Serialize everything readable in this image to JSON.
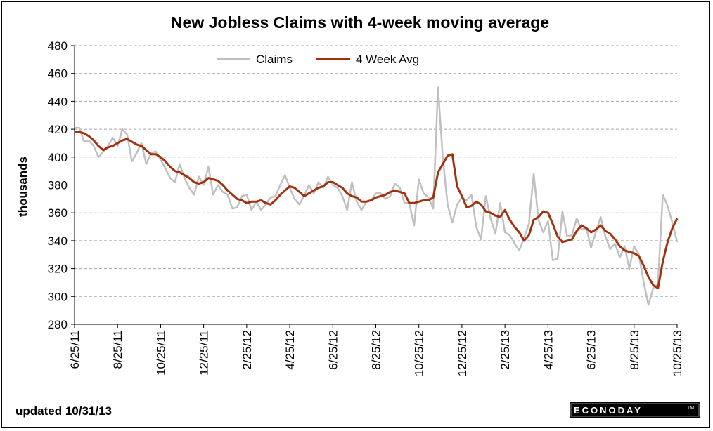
{
  "chart_data": {
    "type": "line",
    "title": "New Jobless Claims with 4-week moving average",
    "ylabel": "thousands",
    "ylim": [
      280,
      480
    ],
    "yticks": [
      280,
      300,
      320,
      340,
      360,
      380,
      400,
      420,
      440,
      460,
      480
    ],
    "xtick_labels": [
      "6/25/11",
      "8/25/11",
      "10/25/11",
      "12/25/11",
      "2/25/12",
      "4/25/12",
      "6/25/12",
      "8/25/12",
      "10/25/12",
      "12/25/12",
      "2/25/13",
      "4/25/13",
      "6/25/13",
      "8/25/13",
      "10/25/13"
    ],
    "grid": "horizontal dashed",
    "legend_position": "top-left",
    "series": [
      {
        "name": "Claims",
        "color": "#c0c0c0",
        "values": [
          421,
          421,
          411,
          412,
          408,
          400,
          404,
          408,
          414,
          408,
          420,
          416,
          397,
          403,
          410,
          395,
          403,
          404,
          398,
          392,
          385,
          382,
          395,
          385,
          378,
          373,
          386,
          380,
          393,
          373,
          380,
          375,
          373,
          363,
          364,
          372,
          373,
          362,
          368,
          362,
          366,
          371,
          372,
          380,
          387,
          378,
          370,
          366,
          372,
          380,
          374,
          382,
          378,
          386,
          380,
          378,
          372,
          362,
          382,
          368,
          362,
          368,
          369,
          374,
          374,
          370,
          372,
          381,
          378,
          367,
          367,
          351,
          384,
          374,
          371,
          363,
          450,
          400,
          366,
          353,
          366,
          371,
          369,
          373,
          350,
          341,
          372,
          356,
          345,
          367,
          346,
          344,
          338,
          333,
          342,
          352,
          388,
          355,
          346,
          354,
          326,
          327,
          361,
          343,
          344,
          356,
          348,
          349,
          335,
          346,
          357,
          343,
          334,
          338,
          328,
          336,
          320,
          336,
          330,
          310,
          294,
          306,
          309,
          373,
          365,
          353,
          339
        ]
      },
      {
        "name": "4 Week Avg",
        "color": "#a0320f",
        "values": [
          418,
          418,
          417,
          415,
          412,
          408,
          405,
          407,
          408,
          410,
          412,
          413,
          411,
          409,
          408,
          405,
          402,
          402,
          400,
          397,
          393,
          390,
          389,
          387,
          385,
          382,
          381,
          382,
          385,
          384,
          383,
          380,
          376,
          373,
          370,
          369,
          367,
          368,
          368,
          369,
          367,
          366,
          369,
          373,
          376,
          379,
          378,
          375,
          372,
          374,
          376,
          378,
          379,
          382,
          382,
          380,
          378,
          374,
          372,
          371,
          368,
          368,
          369,
          371,
          372,
          373,
          375,
          376,
          375,
          374,
          367,
          367,
          368,
          369,
          369,
          371,
          389,
          395,
          401,
          402,
          379,
          372,
          364,
          365,
          368,
          366,
          361,
          360,
          358,
          357,
          362,
          355,
          350,
          346,
          340,
          344,
          355,
          357,
          361,
          360,
          352,
          343,
          339,
          340,
          341,
          347,
          351,
          349,
          346,
          348,
          351,
          347,
          345,
          341,
          336,
          333,
          332,
          331,
          329,
          322,
          314,
          308,
          306,
          325,
          339,
          349,
          356
        ]
      }
    ]
  },
  "footer": {
    "updated": "updated  10/31/13",
    "logo": "ECONODAY",
    "logo_mark": "TM"
  },
  "colors": {
    "claims": "#c0c0c0",
    "avg": "#a0320f",
    "grid": "#a8a8a8"
  }
}
